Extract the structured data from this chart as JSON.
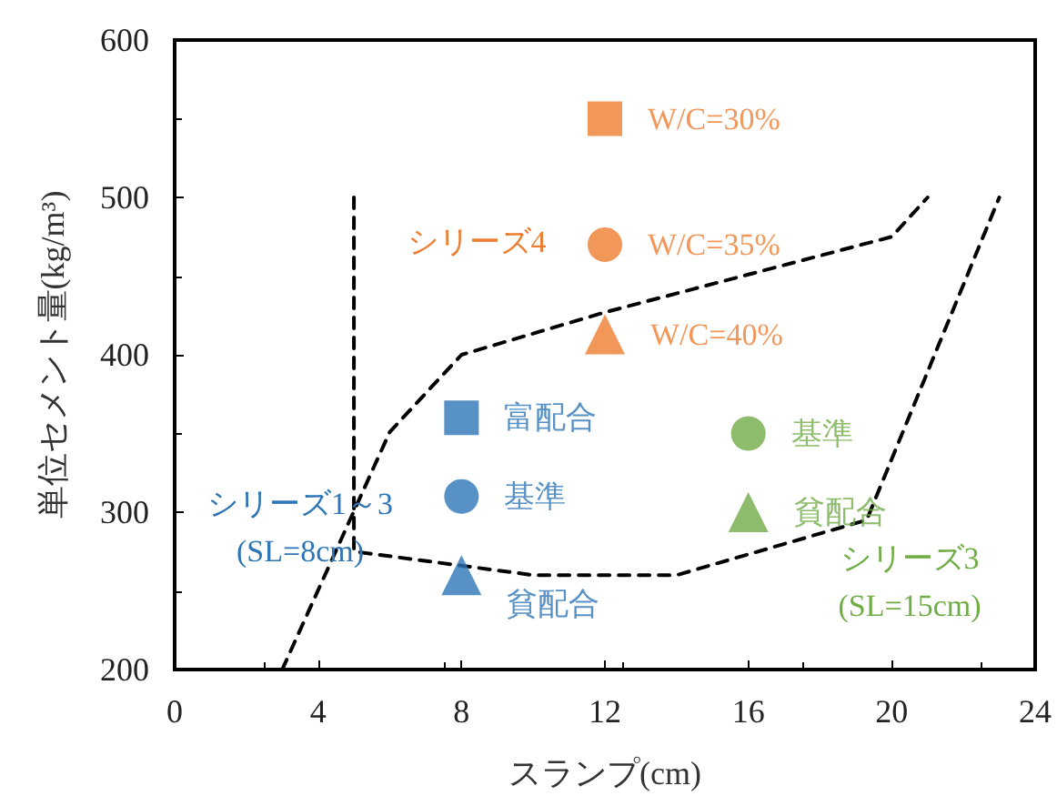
{
  "chart_data": {
    "type": "scatter",
    "xlabel": "スランプ(cm)",
    "ylabel": "単位セメント量(kg/m³)",
    "xlim": [
      0,
      24
    ],
    "xticks": [
      0,
      4,
      8,
      12,
      16,
      20,
      24
    ],
    "ylim": [
      200,
      600
    ],
    "yticks": [
      200,
      300,
      400,
      500,
      600
    ],
    "grid": false,
    "legend": false,
    "series": [
      {
        "type": "line",
        "x": [
          5,
          5,
          8,
          10,
          14,
          19.3,
          23
        ],
        "values": [
          500,
          275,
          266,
          260,
          260,
          295,
          500
        ],
        "color": "#000000",
        "line_style": "dashed",
        "marker": "none"
      },
      {
        "type": "line",
        "x": [
          3,
          6,
          8,
          12,
          20,
          21
        ],
        "values": [
          200,
          351,
          400,
          427,
          475,
          500
        ],
        "color": "#000000",
        "line_style": "dashed",
        "marker": "none"
      },
      {
        "name": "富配合",
        "x": [
          8
        ],
        "values": [
          360
        ],
        "color": "#2e75b6",
        "marker": "square"
      },
      {
        "name": "基準",
        "x": [
          8
        ],
        "values": [
          310
        ],
        "color": "#2e75b6",
        "marker": "circle"
      },
      {
        "name": "貧配合",
        "x": [
          8
        ],
        "values": [
          260
        ],
        "color": "#2e75b6",
        "marker": "triangle"
      },
      {
        "name": "W/C=30%",
        "x": [
          12
        ],
        "values": [
          550
        ],
        "color": "#ed7d31",
        "marker": "square"
      },
      {
        "name": "W/C=35%",
        "x": [
          12
        ],
        "values": [
          470
        ],
        "color": "#ed7d31",
        "marker": "circle"
      },
      {
        "name": "W/C=40%",
        "x": [
          12
        ],
        "values": [
          413
        ],
        "color": "#ed7d31",
        "marker": "triangle"
      },
      {
        "name": "基準",
        "x": [
          16
        ],
        "values": [
          350
        ],
        "color": "#70ad47",
        "marker": "circle"
      },
      {
        "name": "貧配合",
        "x": [
          16
        ],
        "values": [
          300
        ],
        "color": "#70ad47",
        "marker": "triangle"
      }
    ],
    "annotations": [
      "シリーズ1～3\n(SL=8cm)",
      "シリーズ4",
      "シリーズ3\n(SL=15cm)"
    ]
  }
}
